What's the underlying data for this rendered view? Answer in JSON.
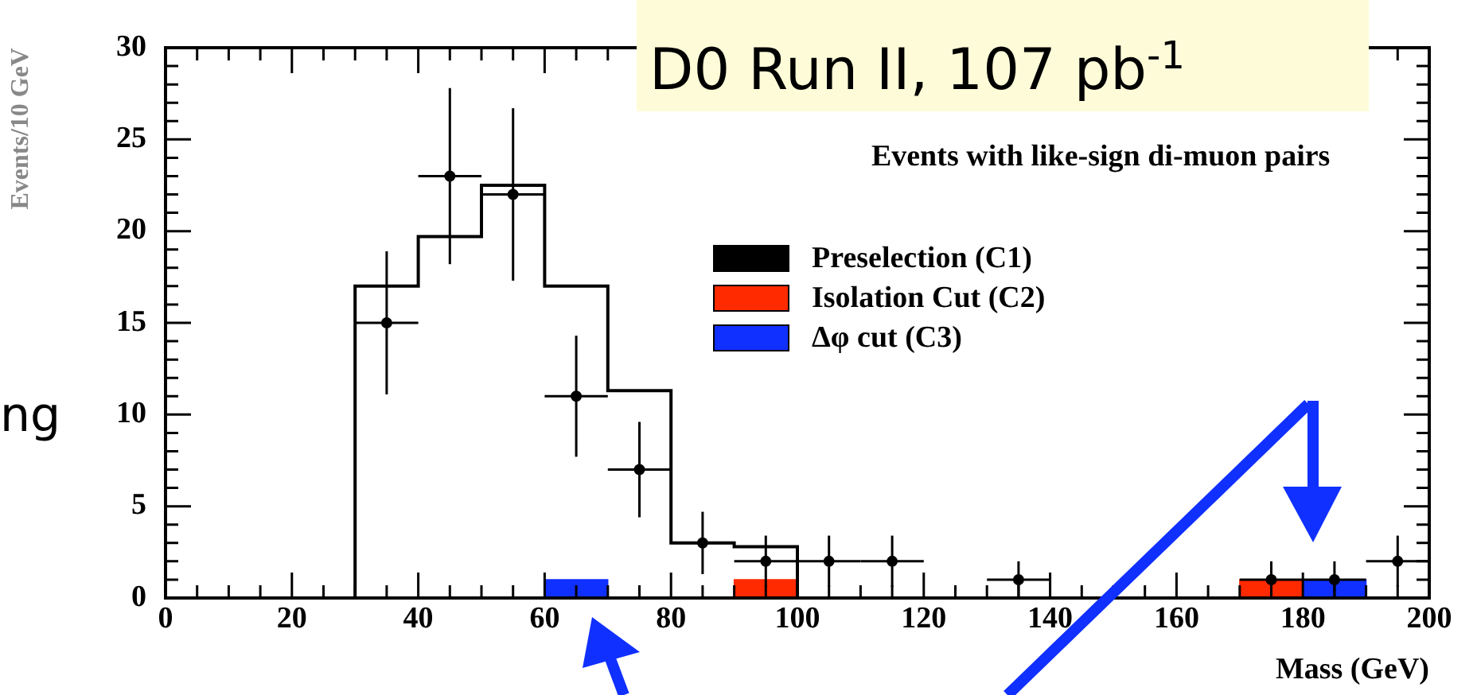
{
  "chart_data": {
    "type": "histogram",
    "title": "Events with like-sign di-muon pairs",
    "subtitle": "D0 Run II, 107 pb$^{-1}$",
    "annotations": [
      "ng"
    ],
    "xlabel": "Mass (GeV)",
    "ylabel": "Events/10 GeV",
    "bins": [
      0,
      10,
      20,
      30,
      40,
      50,
      60,
      70,
      80,
      90,
      100,
      110,
      120,
      130,
      140,
      150,
      160,
      170,
      180,
      190,
      200
    ],
    "series": [
      {
        "name": "Preselection (C1)",
        "type": "step",
        "color": "#000000",
        "x": [
          0,
          10,
          20,
          30,
          40,
          50,
          60,
          70,
          80,
          90,
          100,
          110,
          120,
          130,
          140,
          150,
          160,
          170,
          180,
          190
        ],
        "values": [
          0,
          0,
          0,
          17,
          19.7,
          22.5,
          17,
          11.3,
          3,
          2.8,
          0,
          0,
          0,
          0,
          0,
          0,
          0,
          0,
          0,
          0
        ]
      },
      {
        "name": "Isolation Cut (C2)",
        "color": "#ff2a00",
        "values": [
          0,
          0,
          0,
          0,
          0,
          0,
          0,
          0,
          0,
          1,
          0,
          0,
          0,
          0,
          0,
          0,
          0,
          1,
          0,
          0
        ]
      },
      {
        "name": "Δφ cut (C3)",
        "color": "#1030ff",
        "values": [
          0,
          0,
          0,
          0,
          0,
          0,
          1,
          0,
          0,
          0,
          0,
          0,
          0,
          0,
          0,
          0,
          0,
          0,
          1,
          0
        ]
      },
      {
        "type": "scatter",
        "color": "#000000",
        "marker": "circle",
        "x": [
          35,
          45,
          55,
          65,
          75,
          85,
          95,
          105,
          115,
          135,
          175,
          185,
          195
        ],
        "values": [
          15,
          23,
          22,
          11,
          7,
          3,
          2,
          2,
          2,
          1,
          1,
          1,
          2
        ],
        "errors": [
          3.9,
          4.8,
          4.7,
          3.3,
          2.6,
          1.7,
          1.4,
          1.4,
          1.4,
          1,
          1,
          1,
          1.4
        ],
        "xerrors": [
          5,
          5,
          5,
          5,
          5,
          5,
          5,
          5,
          5,
          5,
          5,
          5,
          5
        ]
      }
    ],
    "xlim": [
      0,
      200
    ],
    "ylim": [
      0,
      30
    ],
    "xticks": [
      0,
      {
        "value": 5,
        "label": null
      },
      {
        "value": 10,
        "label": null
      },
      {
        "value": 15,
        "label": null
      },
      20,
      {
        "value": 25,
        "label": null
      },
      {
        "value": 30,
        "label": null
      },
      {
        "value": 35,
        "label": null
      },
      40,
      {
        "value": 45,
        "label": null
      },
      {
        "value": 50,
        "label": null
      },
      {
        "value": 55,
        "label": null
      },
      60,
      {
        "value": 65,
        "label": null
      },
      {
        "value": 70,
        "label": null
      },
      {
        "value": 75,
        "label": null
      },
      80,
      {
        "value": 85,
        "label": null
      },
      {
        "value": 90,
        "label": null
      },
      {
        "value": 95,
        "label": null
      },
      100,
      {
        "value": 105,
        "label": null
      },
      {
        "value": 110,
        "label": null
      },
      {
        "value": 115,
        "label": null
      },
      120,
      {
        "value": 125,
        "label": null
      },
      {
        "value": 130,
        "label": null
      },
      {
        "value": 135,
        "label": null
      },
      140,
      {
        "value": 145,
        "label": null
      },
      {
        "value": 150,
        "label": null
      },
      {
        "value": 155,
        "label": null
      },
      160,
      {
        "value": 165,
        "label": null
      },
      {
        "value": 170,
        "label": null
      },
      {
        "value": 175,
        "label": null
      },
      180,
      {
        "value": 185,
        "label": null
      },
      {
        "value": 190,
        "label": null
      },
      {
        "value": 195,
        "label": null
      },
      200
    ],
    "yticks": [
      0,
      {
        "value": 1,
        "label": null
      },
      {
        "value": 2,
        "label": null
      },
      {
        "value": 3,
        "label": null
      },
      {
        "value": 4,
        "label": null
      },
      5,
      {
        "value": 6,
        "label": null
      },
      {
        "value": 7,
        "label": null
      },
      {
        "value": 8,
        "label": null
      },
      {
        "value": 9,
        "label": null
      },
      10,
      {
        "value": 11,
        "label": null
      },
      {
        "value": 12,
        "label": null
      },
      {
        "value": 13,
        "label": null
      },
      {
        "value": 14,
        "label": null
      },
      15,
      {
        "value": 16,
        "label": null
      },
      {
        "value": 17,
        "label": null
      },
      {
        "value": 18,
        "label": null
      },
      {
        "value": 19,
        "label": null
      },
      20,
      {
        "value": 21,
        "label": null
      },
      {
        "value": 22,
        "label": null
      },
      {
        "value": 23,
        "label": null
      },
      {
        "value": 24,
        "label": null
      },
      25,
      {
        "value": 26,
        "label": null
      },
      {
        "value": 27,
        "label": null
      },
      {
        "value": 28,
        "label": null
      },
      {
        "value": 29,
        "label": null
      },
      30
    ],
    "grid": false,
    "legend": "top right"
  }
}
